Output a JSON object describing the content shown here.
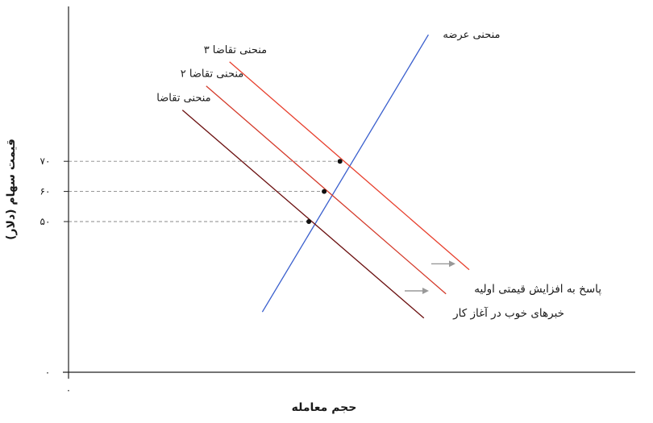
{
  "chart_data": {
    "type": "line",
    "title": "",
    "xlabel": "حجم معامله",
    "ylabel": "قیمت سهام (دلار)",
    "xlim": [
      0,
      100
    ],
    "ylim": [
      0,
      100
    ],
    "x_origin_label": "۰",
    "y_origin_label": "۰",
    "y_ticks": [
      {
        "value": 70,
        "label": "۷۰"
      },
      {
        "value": 60,
        "label": "۶۰"
      },
      {
        "value": 50,
        "label": "۵۰"
      }
    ],
    "grid": false,
    "series": [
      {
        "name": "منحنی عرضه",
        "kind": "supply",
        "color": "#3a5fcd",
        "points": [
          [
            34.2,
            20
          ],
          [
            63.5,
            112
          ]
        ]
      },
      {
        "name": "منحنی تقاضا",
        "kind": "demand",
        "color": "#6b1010",
        "points": [
          [
            20.1,
            87
          ],
          [
            62.7,
            18
          ]
        ]
      },
      {
        "name": "منحنی تقاضا ۲",
        "kind": "demand",
        "color": "#d43a2a",
        "points": [
          [
            24.3,
            95
          ],
          [
            66.6,
            26
          ]
        ]
      },
      {
        "name": "منحنی تقاضا ۳",
        "kind": "demand",
        "color": "#e8402e",
        "points": [
          [
            28.4,
            103
          ],
          [
            70.7,
            34
          ]
        ]
      }
    ],
    "equilibria": [
      {
        "x": 42.4,
        "y": 50
      },
      {
        "x": 45.1,
        "y": 60
      },
      {
        "x": 47.9,
        "y": 70
      }
    ],
    "annotations": [
      {
        "text": "پاسخ به افزایش قیمتی اولیه",
        "arrow_y": 27
      },
      {
        "text": "خبرهای خوب در آغاز کار",
        "arrow_y": 36
      }
    ],
    "annotation_arrow_color": "#999999"
  }
}
